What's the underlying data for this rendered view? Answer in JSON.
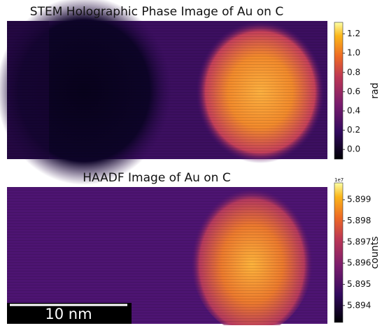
{
  "chart_data": [
    {
      "type": "image",
      "title": "STEM Holographic Phase Image of Au on C",
      "colorbar_label": "rad",
      "clim": [
        -0.1,
        1.32
      ],
      "cticks": [
        {
          "value": 0,
          "label": "0.0"
        },
        0.2,
        0.4,
        0.6,
        0.8,
        {
          "value": 1,
          "label": "1.0"
        },
        1.2
      ]
    },
    {
      "type": "image",
      "title": "HAADF Image of Au on C",
      "colorbar_label": "counts",
      "offset_label": "1e7",
      "clim": [
        5.8932,
        5.8998
      ],
      "cticks": [
        5.894,
        5.895,
        5.896,
        5.897,
        5.898,
        5.899
      ],
      "scalebar_label": "10 nm"
    }
  ]
}
